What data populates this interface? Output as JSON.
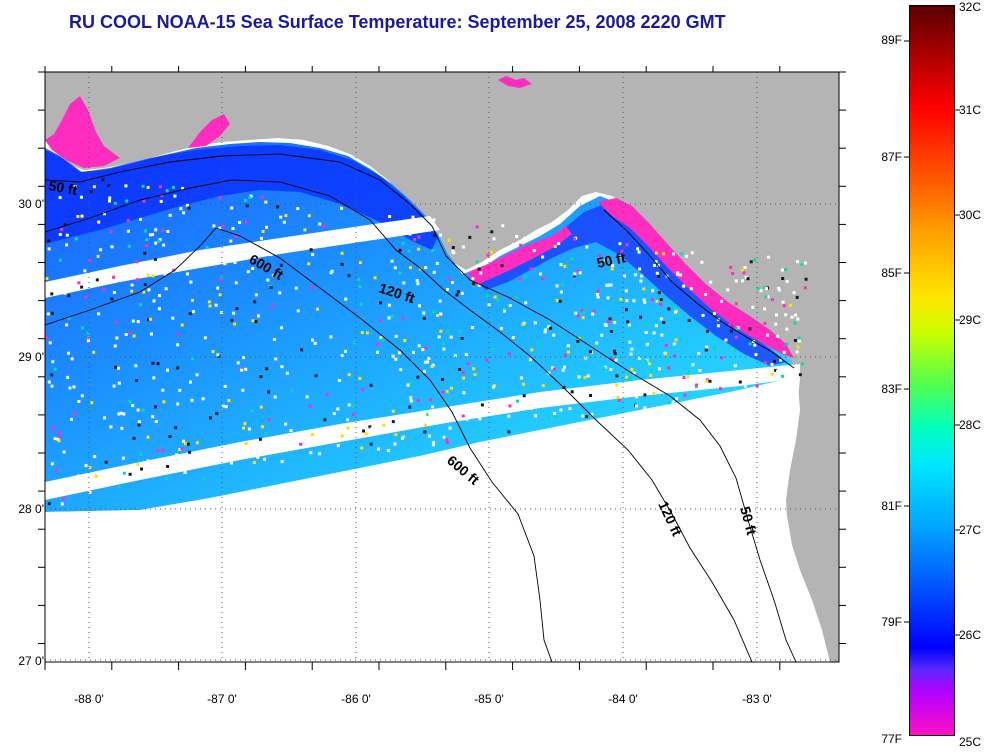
{
  "title": "RU COOL  NOAA-15  Sea Surface Temperature:  September 25, 2008 2220 GMT",
  "map": {
    "lat_labels": [
      "30 0'",
      "29 0'",
      "28 0'",
      "27 0'"
    ],
    "lon_labels": [
      "-88 0'",
      "-87 0'",
      "-86 0'",
      "-85 0'",
      "-84 0'",
      "-83 0'"
    ],
    "contour_labels": [
      {
        "text": "50 ft",
        "id": "contour-50ft-west"
      },
      {
        "text": "600 ft",
        "id": "contour-600ft-north"
      },
      {
        "text": "120 ft",
        "id": "contour-120ft-north"
      },
      {
        "text": "50 ft",
        "id": "contour-50ft-east"
      },
      {
        "text": "600 ft",
        "id": "contour-600ft-south"
      },
      {
        "text": "120 ft",
        "id": "contour-120ft-south"
      },
      {
        "text": "50 ft",
        "id": "contour-50ft-south"
      }
    ],
    "colors": {
      "land": "#b4b4b4",
      "ocean_warm": "#00aaff",
      "ocean_deep": "#0044ff",
      "nearshore": "#ff22bb",
      "cloud": "#ffffff"
    }
  },
  "colorbar": {
    "f_labels": [
      "89F",
      "87F",
      "85F",
      "83F",
      "81F",
      "79F",
      "77F"
    ],
    "c_labels": [
      "32C",
      "31C",
      "30C",
      "29C",
      "28C",
      "27C",
      "26C",
      "25C"
    ]
  }
}
